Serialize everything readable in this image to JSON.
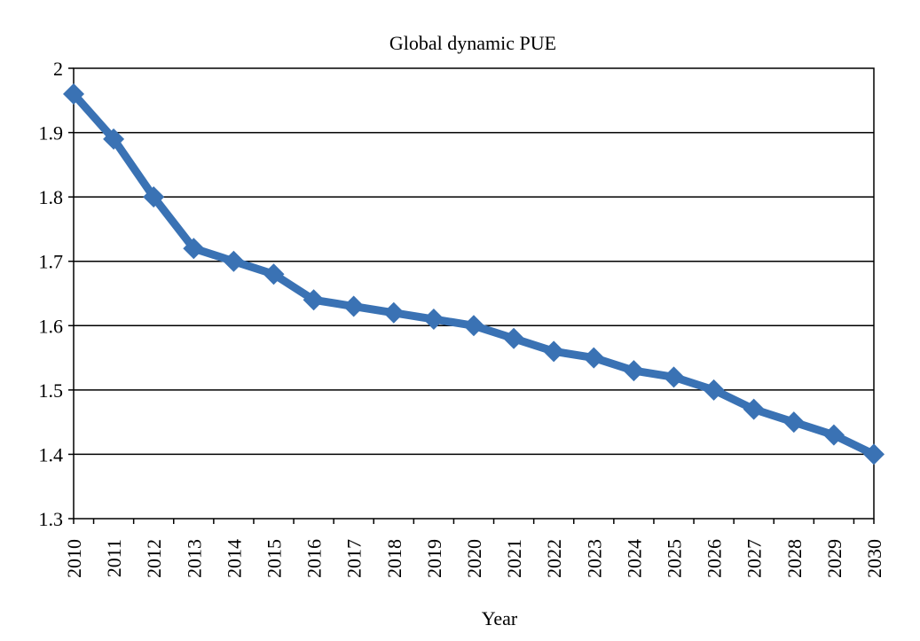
{
  "chart_data": {
    "type": "line",
    "title": "Global dynamic PUE",
    "xlabel": "Year",
    "ylabel": "",
    "categories": [
      "2010",
      "2011",
      "2012",
      "2013",
      "2014",
      "2015",
      "2016",
      "2017",
      "2018",
      "2019",
      "2020",
      "2021",
      "2022",
      "2023",
      "2024",
      "2025",
      "2026",
      "2027",
      "2028",
      "2029",
      "2030"
    ],
    "series": [
      {
        "values": [
          1.96,
          1.89,
          1.8,
          1.72,
          1.7,
          1.68,
          1.64,
          1.63,
          1.62,
          1.61,
          1.6,
          1.58,
          1.56,
          1.55,
          1.53,
          1.52,
          1.5,
          1.47,
          1.45,
          1.43,
          1.4
        ],
        "color": "#3a72b4",
        "marker": "diamond"
      }
    ],
    "ylim": [
      1.3,
      2.0
    ],
    "yticks": [
      "1.3",
      "1.4",
      "1.5",
      "1.6",
      "1.7",
      "1.8",
      "1.9",
      "2"
    ],
    "grid": "horizontal",
    "legend": "none"
  }
}
